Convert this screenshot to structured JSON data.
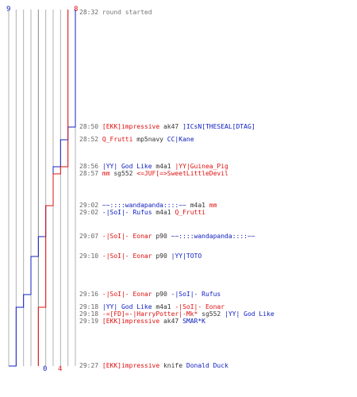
{
  "colors": {
    "team_red": "#e01010",
    "team_blue": "#1020c0",
    "grid": "#b0b0b0",
    "text": "#333333"
  },
  "score": {
    "blue_start": "9",
    "red_start": "8",
    "blue_end": "0",
    "red_end": "4"
  },
  "chart_data": {
    "type": "line",
    "series": [
      {
        "team": "blue",
        "color": "#1020c0",
        "x": [
          "28:32",
          "28:50",
          "28:52",
          "28:56",
          "29:02",
          "29:07",
          "29:10",
          "29:16",
          "29:18",
          "29:18",
          "29:27"
        ],
        "y": [
          9,
          8,
          7,
          6,
          5,
          4,
          3,
          2,
          1,
          1,
          0
        ]
      },
      {
        "team": "red",
        "color": "#e01010",
        "x": [
          "28:32",
          "28:56",
          "28:57",
          "29:02",
          "29:18",
          "29:27"
        ],
        "y": [
          8,
          7,
          6,
          5,
          4,
          4
        ]
      }
    ],
    "ylim": [
      0,
      9
    ]
  },
  "log": [
    {
      "time": "28:32",
      "parts": [
        {
          "text": "round started",
          "style": "msg"
        }
      ]
    },
    {
      "time": "28:50",
      "parts": [
        {
          "text": "[EKK]impressive",
          "style": "red"
        },
        {
          "text": " ak47 ",
          "style": "plain"
        },
        {
          "text": "]ICsN[THESEAL[DTAG]",
          "style": "blue"
        }
      ]
    },
    {
      "time": "28:52",
      "parts": [
        {
          "text": "Q_Frutti",
          "style": "red"
        },
        {
          "text": " mp5navy ",
          "style": "plain"
        },
        {
          "text": "CC|Kane",
          "style": "blue"
        }
      ]
    },
    {
      "time": "28:56",
      "parts": [
        {
          "text": "|YY| God Like",
          "style": "blue"
        },
        {
          "text": " m4a1 ",
          "style": "plain"
        },
        {
          "text": "|YY|Guinea_Pig",
          "style": "red"
        }
      ]
    },
    {
      "time": "28:57",
      "parts": [
        {
          "text": "mm",
          "style": "red"
        },
        {
          "text": " sg552 ",
          "style": "plain"
        },
        {
          "text": "<=JUF[=>SweetLittleDevil",
          "style": "red"
        }
      ]
    },
    {
      "time": "29:02",
      "parts": [
        {
          "text": "~~::::wandapanda::::~~",
          "style": "blue"
        },
        {
          "text": " m4a1 ",
          "style": "plain"
        },
        {
          "text": "mm",
          "style": "red"
        }
      ]
    },
    {
      "time": "29:02",
      "parts": [
        {
          "text": "-|SoI|- Rufus",
          "style": "blue"
        },
        {
          "text": " m4a1 ",
          "style": "plain"
        },
        {
          "text": "Q_Frutti",
          "style": "red"
        }
      ]
    },
    {
      "time": "29:07",
      "parts": [
        {
          "text": "-|SoI|- Eonar",
          "style": "red"
        },
        {
          "text": " p90 ",
          "style": "plain"
        },
        {
          "text": "~~::::wandapanda::::~~",
          "style": "blue"
        }
      ]
    },
    {
      "time": "29:10",
      "parts": [
        {
          "text": "-|SoI|- Eonar",
          "style": "red"
        },
        {
          "text": " p90 ",
          "style": "plain"
        },
        {
          "text": "|YY|TOTO",
          "style": "blue"
        }
      ]
    },
    {
      "time": "29:16",
      "parts": [
        {
          "text": "-|SoI|- Eonar",
          "style": "red"
        },
        {
          "text": " p90 ",
          "style": "plain"
        },
        {
          "text": "-|SoI|- Rufus",
          "style": "blue"
        }
      ]
    },
    {
      "time": "29:18",
      "parts": [
        {
          "text": "|YY| God Like",
          "style": "blue"
        },
        {
          "text": " m4a1 ",
          "style": "plain"
        },
        {
          "text": "-|SoI|- Eonar",
          "style": "red"
        }
      ]
    },
    {
      "time": "29:18",
      "parts": [
        {
          "text": "-=[FD]=-|HarryPotter|-Mk*",
          "style": "red"
        },
        {
          "text": " sg552 ",
          "style": "plain"
        },
        {
          "text": "|YY| God Like",
          "style": "blue"
        }
      ]
    },
    {
      "time": "29:19",
      "parts": [
        {
          "text": "[EKK]impressive",
          "style": "red"
        },
        {
          "text": " ak47 ",
          "style": "plain"
        },
        {
          "text": "SMAR*K",
          "style": "blue"
        }
      ]
    },
    {
      "time": "29:27",
      "parts": [
        {
          "text": "[EKK]impressive",
          "style": "red"
        },
        {
          "text": " knife ",
          "style": "plain"
        },
        {
          "text": "Donald Duck",
          "style": "blue"
        }
      ]
    }
  ]
}
